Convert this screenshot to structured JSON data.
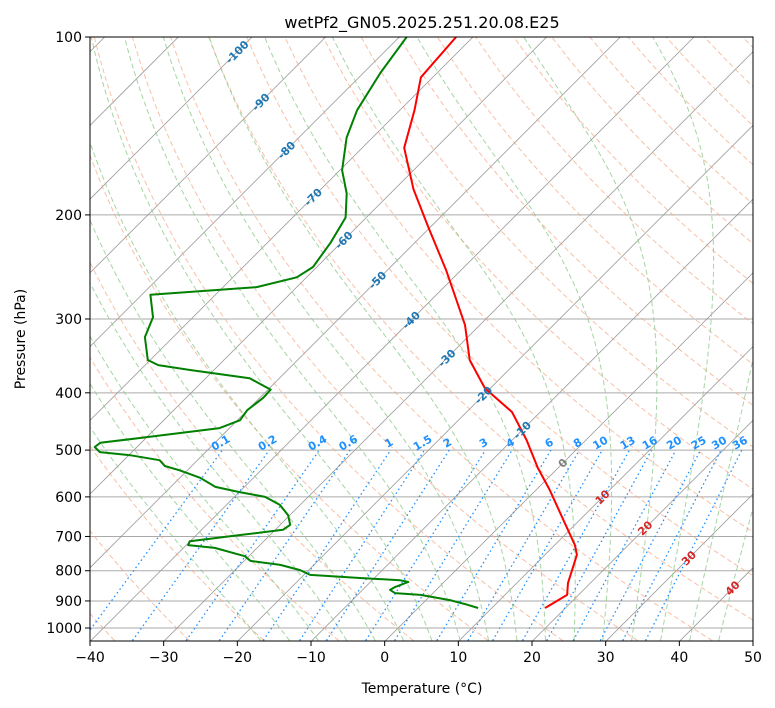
{
  "chart_data": {
    "type": "line",
    "subtype": "skew-t log-p",
    "title": "wetPf2_GN05.2025.251.20.08.E25",
    "xlabel": "Temperature (°C)",
    "ylabel": "Pressure (hPa)",
    "xlim": [
      -40,
      50
    ],
    "ylim": [
      1050,
      100
    ],
    "xticks": [
      "−40",
      "−30",
      "−20",
      "−10",
      "0",
      "10",
      "20",
      "30",
      "40",
      "50"
    ],
    "xtick_values": [
      -40,
      -30,
      -20,
      -10,
      0,
      10,
      20,
      30,
      40,
      50
    ],
    "yticks": [
      "100",
      "200",
      "300",
      "400",
      "500",
      "600",
      "700",
      "800",
      "900",
      "1000"
    ],
    "ytick_values": [
      100,
      200,
      300,
      400,
      500,
      600,
      700,
      800,
      900,
      1000
    ],
    "isotherm_labels": [
      "-100",
      "-90",
      "-80",
      "-70",
      "-60",
      "-50",
      "-40",
      "-30",
      "-20",
      "-10",
      "0",
      "10",
      "20",
      "30",
      "40"
    ],
    "isotherm_values": [
      -100,
      -90,
      -80,
      -70,
      -60,
      -50,
      -40,
      -30,
      -20,
      -10,
      0,
      10,
      20,
      30,
      40
    ],
    "mixing_ratio_labels": [
      "0.1",
      "0.2",
      "0.4",
      "0.6",
      "1",
      "1.5",
      "2",
      "3",
      "4",
      "6",
      "8",
      "10",
      "13",
      "16",
      "20",
      "25",
      "30",
      "36"
    ],
    "mixing_ratio_values": [
      0.1,
      0.2,
      0.4,
      0.6,
      1,
      1.5,
      2,
      3,
      4,
      6,
      8,
      10,
      13,
      16,
      20,
      25,
      30,
      36
    ],
    "colors": {
      "temperature": "#ff0000",
      "dewpoint": "#008000",
      "dry_adiabat": "#f4a582",
      "moist_adiabat": "#8fc98f",
      "mixing_ratio": "#1e90ff",
      "isotherm_cold": "#1f77b4",
      "isotherm_zero": "#808080",
      "isotherm_warm": "#d62728"
    },
    "series": [
      {
        "name": "Temperature",
        "pressure": [
          100,
          117,
          133,
          154,
          181,
          210,
          248,
          307,
          352,
          393,
          431,
          481,
          536,
          584,
          651,
          724,
          752,
          839,
          879,
          925
        ],
        "values": [
          -72.3,
          -71.6,
          -68.0,
          -64.3,
          -57.4,
          -50.2,
          -42.0,
          -32.0,
          -26.6,
          -20.7,
          -13.8,
          -8.0,
          -2.7,
          1.9,
          7.4,
          12.8,
          14.4,
          17.0,
          18.5,
          17.3
        ]
      },
      {
        "name": "Dewpoint",
        "pressure": [
          100,
          115,
          133,
          148,
          168,
          184,
          202,
          223,
          245,
          255,
          265,
          273,
          298,
          322,
          352,
          359,
          366,
          378,
          395,
          408,
          428,
          445,
          459,
          477,
          486,
          494,
          504,
          510,
          520,
          532,
          541,
          557,
          577,
          589,
          600,
          619,
          644,
          669,
          682,
          696,
          713,
          724,
          732,
          756,
          770,
          782,
          798,
          813,
          823,
          830,
          836,
          852,
          862,
          873,
          879,
          897,
          911,
          925
        ],
        "values": [
          -79.0,
          -77.7,
          -75.8,
          -73.5,
          -69.7,
          -65.9,
          -62.8,
          -61.4,
          -60.5,
          -61.3,
          -65.4,
          -78.8,
          -75.4,
          -73.8,
          -70.3,
          -68.2,
          -63.2,
          -54.0,
          -49.6,
          -49.5,
          -50.0,
          -49.6,
          -51.3,
          -60.8,
          -65.5,
          -65.7,
          -64.3,
          -59.8,
          -55.1,
          -53.6,
          -51.0,
          -47.2,
          -43.9,
          -39.9,
          -35.8,
          -32.7,
          -30.2,
          -28.6,
          -28.9,
          -34.0,
          -40.0,
          -39.7,
          -35.7,
          -30.5,
          -29.1,
          -24.5,
          -21.1,
          -19.1,
          -11.9,
          -6.2,
          -4.8,
          -5.9,
          -6.2,
          -5.1,
          -1.4,
          3.3,
          5.9,
          8.2
        ]
      }
    ]
  }
}
